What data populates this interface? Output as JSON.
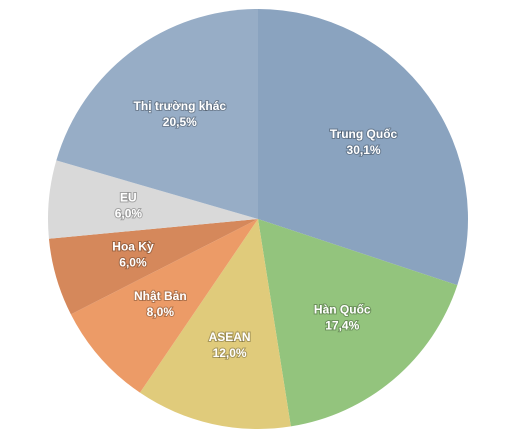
{
  "chart_data": {
    "type": "pie",
    "categories": [
      "Trung Quốc",
      "Hàn Quốc",
      "ASEAN",
      "Nhật Bản",
      "Hoa Kỳ",
      "EU",
      "Thị trường khác"
    ],
    "values": [
      30.1,
      17.4,
      12.0,
      8.0,
      6.0,
      6.0,
      20.5
    ],
    "value_labels": [
      "30,1%",
      "17,4%",
      "12,0%",
      "8,0%",
      "6,0%",
      "6,0%",
      "20,5%"
    ],
    "colors": [
      "#8aa3bf",
      "#93c47d",
      "#e0cb7b",
      "#ec9b67",
      "#d5885b",
      "#d9d9d9",
      "#97adc6"
    ]
  }
}
